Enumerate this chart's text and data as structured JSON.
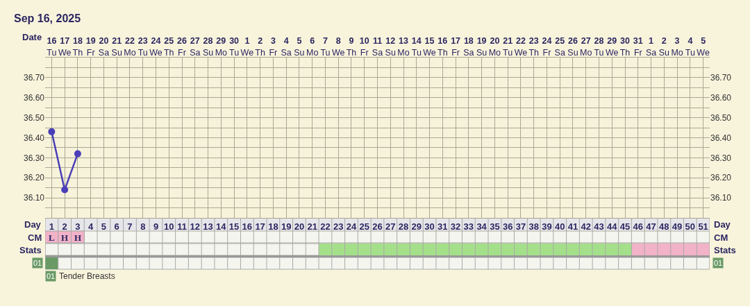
{
  "chart_data": {
    "type": "line",
    "title": "Sep 16, 2025",
    "xlabel": "Day",
    "x2label": "Date",
    "x": [
      1,
      2,
      3
    ],
    "series": [
      {
        "color": "#4a3fb8",
        "values": [
          36.43,
          36.14,
          36.32
        ]
      }
    ],
    "xlim": [
      0.5,
      51.5
    ],
    "xticks": [
      1,
      2,
      3,
      4,
      5,
      6,
      7,
      8,
      9,
      10,
      11,
      12,
      13,
      14,
      15,
      16,
      17,
      18,
      19,
      20,
      21,
      22,
      23,
      24,
      25,
      26,
      27,
      28,
      29,
      30,
      31,
      32,
      33,
      34,
      35,
      36,
      37,
      38,
      39,
      40,
      41,
      42,
      43,
      44,
      45,
      46,
      47,
      48,
      49,
      50,
      51
    ],
    "x2lim": [
      "2025-09-15T12:00",
      "2025-11-05T12:00"
    ],
    "x2ticks": [
      {
        "value": "2025-09-16",
        "label": "16\nTu"
      },
      {
        "value": "2025-09-17",
        "label": "17\nWe"
      },
      {
        "value": "2025-09-18",
        "label": "18\nTh"
      },
      {
        "value": "2025-09-19",
        "label": "19\nFr"
      },
      {
        "value": "2025-09-20",
        "label": "20\nSa"
      },
      {
        "value": "2025-09-21",
        "label": "21\nSu"
      },
      {
        "value": "2025-09-22",
        "label": "22\nMo"
      },
      {
        "value": "2025-09-23",
        "label": "23\nTu"
      },
      {
        "value": "2025-09-24",
        "label": "24\nWe"
      },
      {
        "value": "2025-09-25",
        "label": "25\nTh"
      },
      {
        "value": "2025-09-26",
        "label": "26\nFr"
      },
      {
        "value": "2025-09-27",
        "label": "27\nSa"
      },
      {
        "value": "2025-09-28",
        "label": "28\nSu"
      },
      {
        "value": "2025-09-29",
        "label": "29\nMo"
      },
      {
        "value": "2025-09-30",
        "label": "30\nTu"
      },
      {
        "value": "2025-10-01",
        "label": "1\nWe"
      },
      {
        "value": "2025-10-02",
        "label": "2\nTh"
      },
      {
        "value": "2025-10-03",
        "label": "3\nFr"
      },
      {
        "value": "2025-10-04",
        "label": "4\nSa"
      },
      {
        "value": "2025-10-05",
        "label": "5\nSu"
      },
      {
        "value": "2025-10-06",
        "label": "6\nMo"
      },
      {
        "value": "2025-10-07",
        "label": "7\nTu"
      },
      {
        "value": "2025-10-08",
        "label": "8\nWe"
      },
      {
        "value": "2025-10-09",
        "label": "9\nTh"
      },
      {
        "value": "2025-10-10",
        "label": "10\nFr"
      },
      {
        "value": "2025-10-11",
        "label": "11\nSa"
      },
      {
        "value": "2025-10-12",
        "label": "12\nSu"
      },
      {
        "value": "2025-10-13",
        "label": "13\nMo"
      },
      {
        "value": "2025-10-14",
        "label": "14\nTu"
      },
      {
        "value": "2025-10-15",
        "label": "15\nWe"
      },
      {
        "value": "2025-10-16",
        "label": "16\nTh"
      },
      {
        "value": "2025-10-17",
        "label": "17\nFr"
      },
      {
        "value": "2025-10-18",
        "label": "18\nSa"
      },
      {
        "value": "2025-10-19",
        "label": "19\nSu"
      },
      {
        "value": "2025-10-20",
        "label": "20\nMo"
      },
      {
        "value": "2025-10-21",
        "label": "21\nTu"
      },
      {
        "value": "2025-10-22",
        "label": "22\nWe"
      },
      {
        "value": "2025-10-23",
        "label": "23\nTh"
      },
      {
        "value": "2025-10-24",
        "label": "24\nFr"
      },
      {
        "value": "2025-10-25",
        "label": "25\nSa"
      },
      {
        "value": "2025-10-26",
        "label": "26\nSu"
      },
      {
        "value": "2025-10-27",
        "label": "27\nMo"
      },
      {
        "value": "2025-10-28",
        "label": "28\nTu"
      },
      {
        "value": "2025-10-29",
        "label": "29\nWe"
      },
      {
        "value": "2025-10-30",
        "label": "30\nTh"
      },
      {
        "value": "2025-10-31",
        "label": "31\nFr"
      },
      {
        "value": "2025-11-01",
        "label": "1\nSa"
      },
      {
        "value": "2025-11-02",
        "label": "2\nSu"
      },
      {
        "value": "2025-11-03",
        "label": "3\nMo"
      },
      {
        "value": "2025-11-04",
        "label": "4\nTu"
      },
      {
        "value": "2025-11-05",
        "label": "5\nWe"
      }
    ],
    "ylim": [
      36.0,
      36.8
    ],
    "yticks": [
      {
        "value": 36.1,
        "label": "36.10"
      },
      {
        "value": 36.2,
        "label": "36.20"
      },
      {
        "value": 36.3,
        "label": "36.30"
      },
      {
        "value": 36.4,
        "label": "36.40"
      },
      {
        "value": 36.5,
        "label": "36.50"
      },
      {
        "value": 36.6,
        "label": "36.60"
      },
      {
        "value": 36.7,
        "label": "36.70"
      }
    ],
    "y2lim": [
      36.0,
      36.8
    ],
    "y2ticks": [
      {
        "value": 36.1,
        "label": "36.10"
      },
      {
        "value": 36.2,
        "label": "36.20"
      },
      {
        "value": 36.3,
        "label": "36.30"
      },
      {
        "value": 36.4,
        "label": "36.40"
      },
      {
        "value": 36.5,
        "label": "36.50"
      },
      {
        "value": 36.6,
        "label": "36.60"
      },
      {
        "value": 36.7,
        "label": "36.70"
      }
    ],
    "marker": "circle",
    "line_style": "solid",
    "grid": true,
    "annotations": [
      "CM",
      "Stats",
      "01",
      "Tender Breasts",
      "L",
      "H",
      "H"
    ]
  }
}
